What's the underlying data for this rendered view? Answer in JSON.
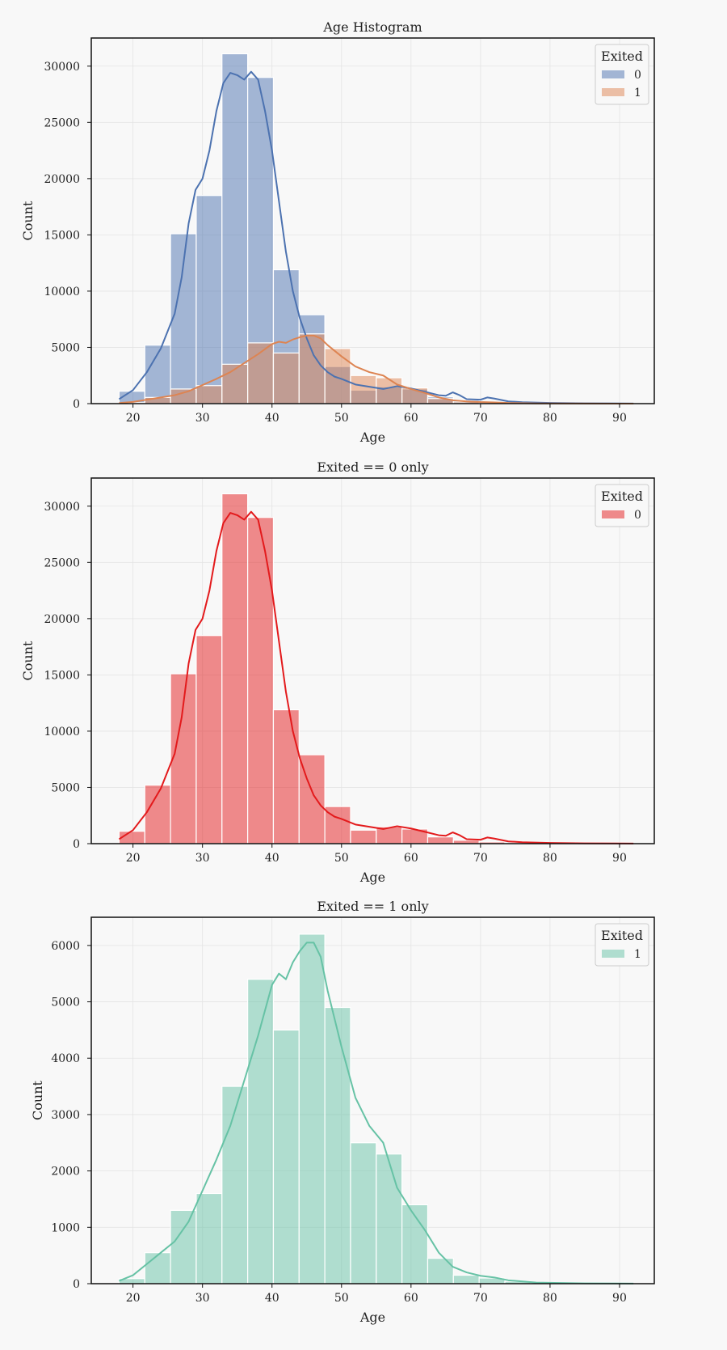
{
  "chart_data": [
    {
      "type": "bar",
      "title": "Age Histogram",
      "xlabel": "Age",
      "ylabel": "Count",
      "xlim": [
        14,
        95
      ],
      "ylim": [
        0,
        32500
      ],
      "xticks": [
        20,
        30,
        40,
        50,
        60,
        70,
        80,
        90
      ],
      "yticks": [
        0,
        5000,
        10000,
        15000,
        20000,
        25000,
        30000
      ],
      "bin_edges": [
        18,
        21.7,
        25.4,
        29.1,
        32.8,
        36.5,
        40.2,
        43.9,
        47.6,
        51.3,
        55.0,
        58.7,
        62.4,
        66.1,
        69.8,
        73.5,
        77.2,
        80.9,
        84.6,
        88.3,
        92
      ],
      "legend": {
        "title": "Exited",
        "position": "top-right"
      },
      "series": [
        {
          "name": "0",
          "color": "#4c72b0",
          "bar_opacity": 0.5,
          "values": [
            1100,
            5200,
            15100,
            18500,
            31100,
            29000,
            11900,
            7900,
            3300,
            1200,
            1500,
            1300,
            600,
            300,
            150,
            70,
            30,
            15,
            8,
            4
          ],
          "kde": [
            [
              18,
              400
            ],
            [
              20,
              1200
            ],
            [
              22,
              2800
            ],
            [
              24,
              4900
            ],
            [
              26,
              8000
            ],
            [
              27,
              11200
            ],
            [
              28,
              16000
            ],
            [
              29,
              19000
            ],
            [
              30,
              20000
            ],
            [
              31,
              22500
            ],
            [
              32,
              26000
            ],
            [
              33,
              28500
            ],
            [
              34,
              29400
            ],
            [
              35,
              29200
            ],
            [
              36,
              28800
            ],
            [
              37,
              29500
            ],
            [
              38,
              28800
            ],
            [
              39,
              26000
            ],
            [
              40,
              22500
            ],
            [
              41,
              18000
            ],
            [
              42,
              13500
            ],
            [
              43,
              10000
            ],
            [
              44,
              7600
            ],
            [
              45,
              5800
            ],
            [
              46,
              4300
            ],
            [
              47,
              3400
            ],
            [
              48,
              2800
            ],
            [
              49,
              2400
            ],
            [
              50,
              2200
            ],
            [
              52,
              1700
            ],
            [
              54,
              1500
            ],
            [
              56,
              1300
            ],
            [
              58,
              1550
            ],
            [
              60,
              1350
            ],
            [
              62,
              1050
            ],
            [
              64,
              750
            ],
            [
              65,
              700
            ],
            [
              66,
              1000
            ],
            [
              67,
              750
            ],
            [
              68,
              400
            ],
            [
              70,
              350
            ],
            [
              71,
              550
            ],
            [
              72,
              450
            ],
            [
              74,
              200
            ],
            [
              76,
              130
            ],
            [
              80,
              60
            ],
            [
              85,
              25
            ],
            [
              92,
              8
            ]
          ]
        },
        {
          "name": "1",
          "color": "#dd8452",
          "bar_opacity": 0.5,
          "values": [
            90,
            550,
            1300,
            1600,
            3500,
            5400,
            4500,
            6200,
            4900,
            2500,
            2300,
            1400,
            450,
            150,
            100,
            40,
            15,
            8,
            4,
            2
          ],
          "kde": [
            [
              18,
              50
            ],
            [
              20,
              150
            ],
            [
              22,
              350
            ],
            [
              24,
              550
            ],
            [
              26,
              750
            ],
            [
              28,
              1100
            ],
            [
              30,
              1650
            ],
            [
              32,
              2200
            ],
            [
              34,
              2800
            ],
            [
              36,
              3600
            ],
            [
              38,
              4400
            ],
            [
              40,
              5300
            ],
            [
              41,
              5500
            ],
            [
              42,
              5400
            ],
            [
              43,
              5700
            ],
            [
              44,
              5900
            ],
            [
              45,
              6050
            ],
            [
              46,
              6050
            ],
            [
              47,
              5800
            ],
            [
              48,
              5200
            ],
            [
              50,
              4200
            ],
            [
              52,
              3300
            ],
            [
              54,
              2800
            ],
            [
              56,
              2500
            ],
            [
              58,
              1700
            ],
            [
              60,
              1300
            ],
            [
              62,
              950
            ],
            [
              64,
              550
            ],
            [
              66,
              300
            ],
            [
              68,
              200
            ],
            [
              70,
              140
            ],
            [
              72,
              110
            ],
            [
              74,
              60
            ],
            [
              78,
              20
            ],
            [
              85,
              5
            ],
            [
              92,
              2
            ]
          ]
        }
      ]
    },
    {
      "type": "bar",
      "title": "Exited == 0 only",
      "xlabel": "Age",
      "ylabel": "Count",
      "xlim": [
        14,
        95
      ],
      "ylim": [
        0,
        32500
      ],
      "xticks": [
        20,
        30,
        40,
        50,
        60,
        70,
        80,
        90
      ],
      "yticks": [
        0,
        5000,
        10000,
        15000,
        20000,
        25000,
        30000
      ],
      "bin_edges": [
        18,
        21.7,
        25.4,
        29.1,
        32.8,
        36.5,
        40.2,
        43.9,
        47.6,
        51.3,
        55.0,
        58.7,
        62.4,
        66.1,
        69.8,
        73.5,
        77.2,
        80.9,
        84.6,
        88.3,
        92
      ],
      "legend": {
        "title": "Exited",
        "position": "top-right"
      },
      "series": [
        {
          "name": "0",
          "color": "#e31a1c",
          "bar_opacity": 0.5,
          "values": [
            1100,
            5200,
            15100,
            18500,
            31100,
            29000,
            11900,
            7900,
            3300,
            1200,
            1500,
            1300,
            600,
            300,
            150,
            70,
            30,
            15,
            8,
            4
          ],
          "kde": [
            [
              18,
              400
            ],
            [
              20,
              1200
            ],
            [
              22,
              2800
            ],
            [
              24,
              4900
            ],
            [
              26,
              8000
            ],
            [
              27,
              11200
            ],
            [
              28,
              16000
            ],
            [
              29,
              19000
            ],
            [
              30,
              20000
            ],
            [
              31,
              22500
            ],
            [
              32,
              26000
            ],
            [
              33,
              28500
            ],
            [
              34,
              29400
            ],
            [
              35,
              29200
            ],
            [
              36,
              28800
            ],
            [
              37,
              29500
            ],
            [
              38,
              28800
            ],
            [
              39,
              26000
            ],
            [
              40,
              22500
            ],
            [
              41,
              18000
            ],
            [
              42,
              13500
            ],
            [
              43,
              10000
            ],
            [
              44,
              7600
            ],
            [
              45,
              5800
            ],
            [
              46,
              4300
            ],
            [
              47,
              3400
            ],
            [
              48,
              2800
            ],
            [
              49,
              2400
            ],
            [
              50,
              2200
            ],
            [
              52,
              1700
            ],
            [
              54,
              1500
            ],
            [
              56,
              1300
            ],
            [
              58,
              1550
            ],
            [
              60,
              1350
            ],
            [
              62,
              1050
            ],
            [
              64,
              750
            ],
            [
              65,
              700
            ],
            [
              66,
              1000
            ],
            [
              67,
              750
            ],
            [
              68,
              400
            ],
            [
              70,
              350
            ],
            [
              71,
              550
            ],
            [
              72,
              450
            ],
            [
              74,
              200
            ],
            [
              76,
              130
            ],
            [
              80,
              60
            ],
            [
              85,
              25
            ],
            [
              92,
              8
            ]
          ]
        }
      ]
    },
    {
      "type": "bar",
      "title": "Exited == 1 only",
      "xlabel": "Age",
      "ylabel": "Count",
      "xlim": [
        14,
        95
      ],
      "ylim": [
        0,
        6500
      ],
      "xticks": [
        20,
        30,
        40,
        50,
        60,
        70,
        80,
        90
      ],
      "yticks": [
        0,
        1000,
        2000,
        3000,
        4000,
        5000,
        6000
      ],
      "bin_edges": [
        18,
        21.7,
        25.4,
        29.1,
        32.8,
        36.5,
        40.2,
        43.9,
        47.6,
        51.3,
        55.0,
        58.7,
        62.4,
        66.1,
        69.8,
        73.5,
        77.2,
        80.9,
        84.6,
        88.3,
        92
      ],
      "legend": {
        "title": "Exited",
        "position": "top-right"
      },
      "series": [
        {
          "name": "1",
          "color": "#66c2a5",
          "bar_opacity": 0.5,
          "values": [
            90,
            550,
            1300,
            1600,
            3500,
            5400,
            4500,
            6200,
            4900,
            2500,
            2300,
            1400,
            450,
            150,
            100,
            40,
            15,
            8,
            4,
            2
          ],
          "kde": [
            [
              18,
              50
            ],
            [
              20,
              150
            ],
            [
              22,
              350
            ],
            [
              24,
              550
            ],
            [
              26,
              750
            ],
            [
              28,
              1100
            ],
            [
              30,
              1650
            ],
            [
              32,
              2200
            ],
            [
              34,
              2800
            ],
            [
              36,
              3600
            ],
            [
              38,
              4400
            ],
            [
              40,
              5300
            ],
            [
              41,
              5500
            ],
            [
              42,
              5400
            ],
            [
              43,
              5700
            ],
            [
              44,
              5900
            ],
            [
              45,
              6050
            ],
            [
              46,
              6050
            ],
            [
              47,
              5800
            ],
            [
              48,
              5200
            ],
            [
              50,
              4200
            ],
            [
              52,
              3300
            ],
            [
              54,
              2800
            ],
            [
              56,
              2500
            ],
            [
              58,
              1700
            ],
            [
              60,
              1300
            ],
            [
              62,
              950
            ],
            [
              64,
              550
            ],
            [
              66,
              300
            ],
            [
              68,
              200
            ],
            [
              70,
              140
            ],
            [
              72,
              110
            ],
            [
              74,
              60
            ],
            [
              78,
              20
            ],
            [
              85,
              5
            ],
            [
              92,
              2
            ]
          ]
        }
      ]
    }
  ]
}
